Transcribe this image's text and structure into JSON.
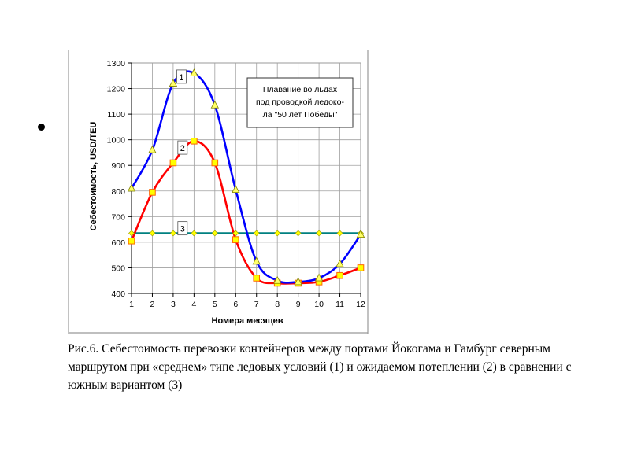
{
  "slide": {
    "bullet": "•"
  },
  "figure": {
    "caption": "Рис.6. Себестоимость перевозки контейнеров между портами Йокогама и Гамбург северным маршрутом при «среднем» типе ледовых условий (1) и ожидаемом потеплении (2) в сравнении с южным вариантом (3)"
  },
  "chart_data": {
    "type": "line",
    "title": "",
    "xlabel": "Номера месяцев",
    "ylabel": "Себестоимость, USD/TEU",
    "x": [
      1,
      2,
      3,
      4,
      5,
      6,
      7,
      8,
      9,
      10,
      11,
      12
    ],
    "xlim": [
      1,
      12
    ],
    "ylim": [
      400,
      1300
    ],
    "yticks": [
      400,
      500,
      600,
      700,
      800,
      900,
      1000,
      1100,
      1200,
      1300
    ],
    "grid": true,
    "annotation": "Плавание во льдах под проводкой ледокола \"50 лет Победы\"",
    "annotation_lines": [
      "Плавание во льдах",
      "под проводкой ледоко-",
      "ла \"50 лет Победы\""
    ],
    "series": [
      {
        "name": "1",
        "label": "1",
        "color": "#0000ff",
        "marker": "triangle",
        "marker_color": "#ffff66",
        "values": [
          810,
          960,
          1220,
          1260,
          1135,
          805,
          525,
          450,
          445,
          460,
          515,
          630
        ]
      },
      {
        "name": "2",
        "label": "2",
        "color": "#ff0000",
        "marker": "square",
        "marker_color": "#ffff00",
        "values": [
          605,
          795,
          910,
          995,
          910,
          610,
          460,
          440,
          440,
          445,
          470,
          500
        ]
      },
      {
        "name": "3",
        "label": "3",
        "color": "#008080",
        "marker": "diamond",
        "marker_color": "#ffff00",
        "values": [
          635,
          635,
          635,
          635,
          635,
          635,
          635,
          635,
          635,
          635,
          635,
          635
        ]
      }
    ]
  }
}
